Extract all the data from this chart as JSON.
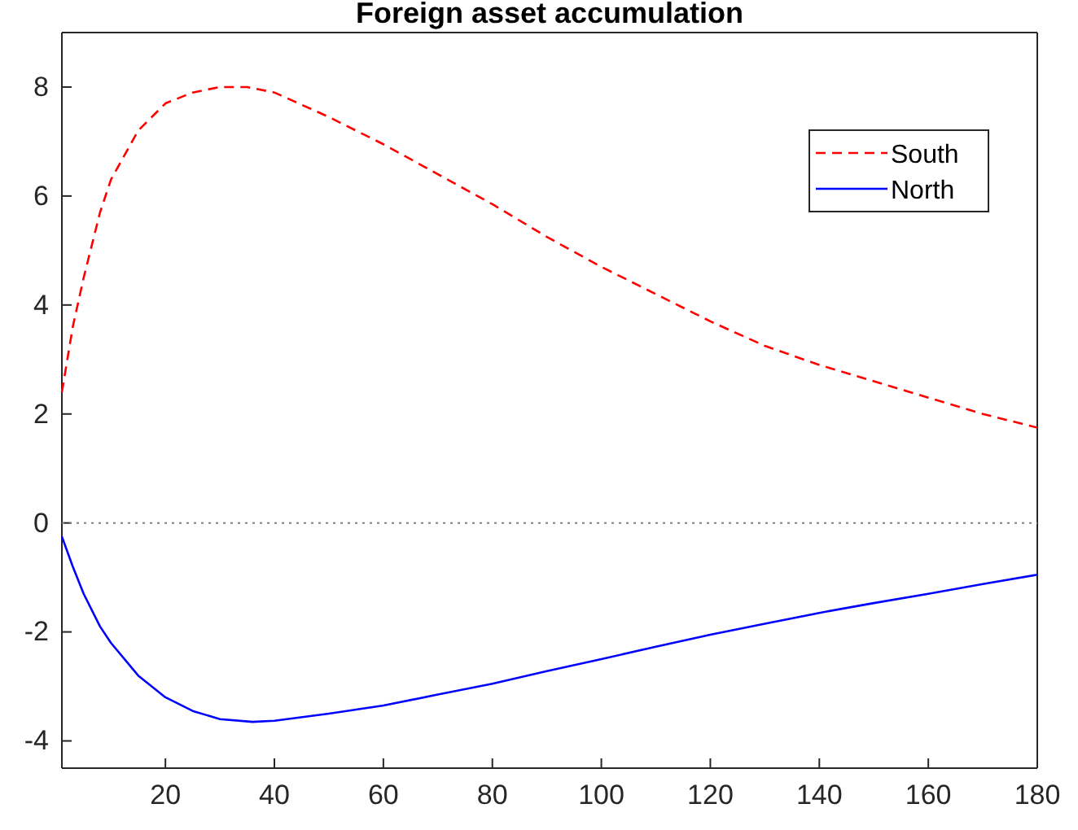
{
  "chart_data": {
    "type": "line",
    "title": "Foreign asset accumulation",
    "xlim": [
      1,
      180
    ],
    "xticks": [
      20,
      40,
      60,
      80,
      100,
      120,
      140,
      160,
      180
    ],
    "ylim": [
      -4.5,
      9
    ],
    "yticks": [
      -4,
      -2,
      0,
      2,
      4,
      6,
      8
    ],
    "legend": "top right",
    "grid": false,
    "ref_lines": [
      {
        "axis": "y",
        "value": 0,
        "color": "#808080",
        "line_style": "dotted"
      }
    ],
    "series": [
      {
        "name": "South",
        "color": "#ff0000",
        "line_style": "dashed",
        "x": [
          1,
          3,
          5,
          8,
          10,
          15,
          20,
          25,
          30,
          35,
          40,
          50,
          60,
          70,
          80,
          90,
          100,
          110,
          120,
          130,
          140,
          150,
          160,
          170,
          180
        ],
        "values": [
          2.4,
          3.6,
          4.5,
          5.7,
          6.3,
          7.2,
          7.7,
          7.9,
          8.0,
          8.0,
          7.9,
          7.45,
          6.95,
          6.4,
          5.85,
          5.25,
          4.7,
          4.2,
          3.7,
          3.25,
          2.9,
          2.6,
          2.3,
          2.0,
          1.75
        ]
      },
      {
        "name": "North",
        "color": "#0000ff",
        "line_style": "solid",
        "x": [
          1,
          3,
          5,
          8,
          10,
          15,
          20,
          25,
          30,
          36,
          40,
          50,
          60,
          70,
          80,
          90,
          100,
          110,
          120,
          130,
          140,
          150,
          160,
          170,
          180
        ],
        "values": [
          -0.25,
          -0.8,
          -1.3,
          -1.9,
          -2.2,
          -2.8,
          -3.2,
          -3.45,
          -3.6,
          -3.65,
          -3.63,
          -3.5,
          -3.35,
          -3.15,
          -2.95,
          -2.72,
          -2.5,
          -2.27,
          -2.05,
          -1.85,
          -1.65,
          -1.47,
          -1.3,
          -1.12,
          -0.95
        ]
      }
    ]
  }
}
